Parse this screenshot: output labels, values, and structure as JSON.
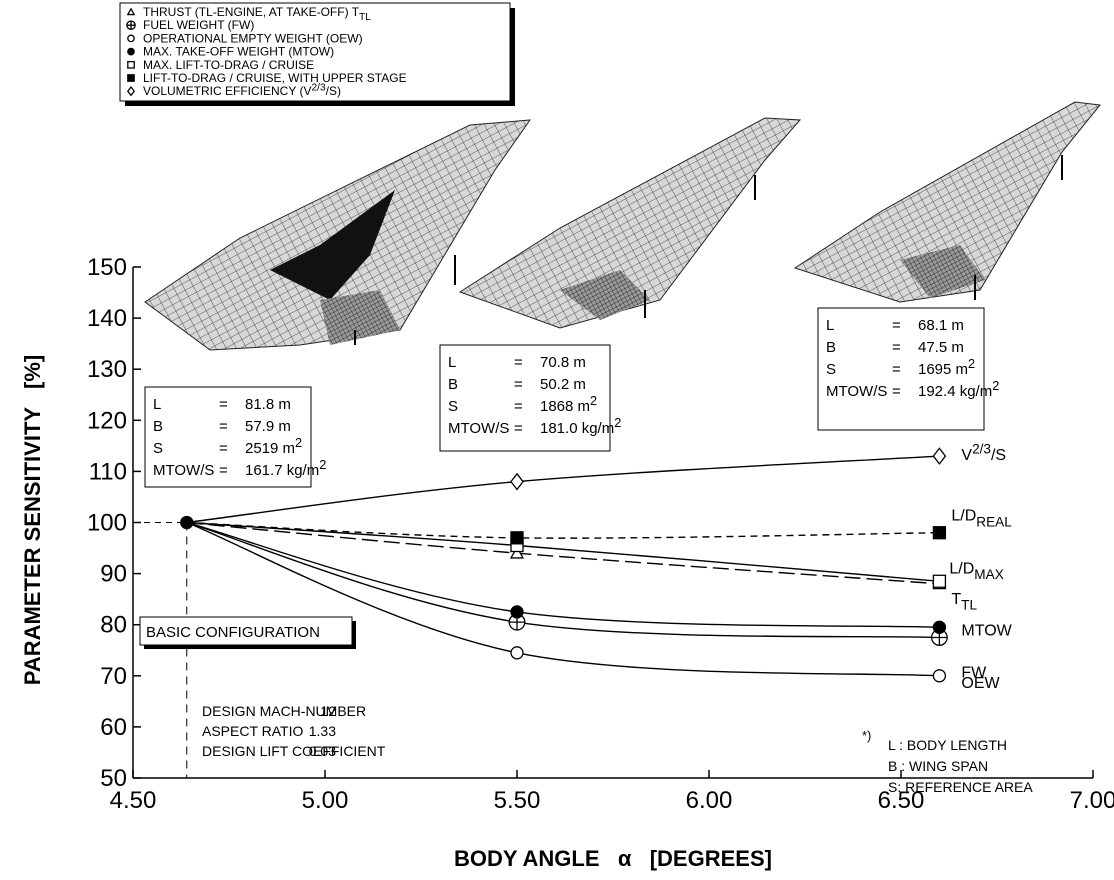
{
  "chart_data": {
    "type": "line",
    "x_label": "BODY ANGLE   α   [DEGREES]",
    "y_label": "PARAMETER SENSITIVITY   [%]",
    "x": [
      4.64,
      5.5,
      6.6
    ],
    "xlim": [
      4.5,
      7.0
    ],
    "xticks": [
      {
        "value": 4.5,
        "label": "4.50"
      },
      {
        "value": 5.0,
        "label": "5.00"
      },
      {
        "value": 5.5,
        "label": "5.50"
      },
      {
        "value": 6.0,
        "label": "6.00"
      },
      {
        "value": 6.5,
        "label": "6.50"
      },
      {
        "value": 7.0,
        "label": "7.00"
      }
    ],
    "ylim": [
      50,
      150
    ],
    "yticks": [
      50,
      60,
      70,
      80,
      90,
      100,
      110,
      120,
      130,
      140,
      150
    ],
    "series": [
      {
        "name": [
          "THRUST (TL-ENGINE, AT TAKE-OFF) T",
          {
            "sub": "TL"
          }
        ],
        "end_label": [
          "T",
          {
            "sub": "TL"
          }
        ],
        "marker": "triangle",
        "dash": "long-dash",
        "color": "#000000",
        "values": [
          100,
          94,
          88
        ]
      },
      {
        "name": [
          "FUEL WEIGHT (FW)"
        ],
        "end_label": [
          "FW"
        ],
        "marker": "circle-plus",
        "dash": "solid",
        "color": "#000000",
        "values": [
          100,
          80.5,
          77.5
        ]
      },
      {
        "name": [
          "OPERATIONAL EMPTY WEIGHT (OEW)"
        ],
        "end_label": [
          "OEW"
        ],
        "marker": "circle",
        "dash": "solid",
        "color": "#000000",
        "values": [
          100,
          74.5,
          70
        ]
      },
      {
        "name": [
          "MAX. TAKE-OFF WEIGHT (MTOW)"
        ],
        "end_label": [
          "MTOW"
        ],
        "marker": "filled-circle",
        "dash": "solid",
        "color": "#000000",
        "values": [
          100,
          82.5,
          79.5
        ]
      },
      {
        "name": [
          "MAX. LIFT-TO-DRAG / CRUISE"
        ],
        "end_label": [
          "L/D",
          {
            "sub": "MAX"
          }
        ],
        "marker": "square",
        "dash": "solid",
        "color": "#000000",
        "values": [
          100,
          95.5,
          88.5
        ]
      },
      {
        "name": [
          "LIFT-TO-DRAG / CRUISE, WITH UPPER STAGE"
        ],
        "end_label": [
          "L/D",
          {
            "sub": "REAL"
          }
        ],
        "marker": "filled-square",
        "dash": "dash",
        "color": "#000000",
        "values": [
          100,
          97,
          98
        ]
      },
      {
        "name": [
          "VOLUMETRIC EFFICIENCY (V",
          {
            "sup": "2/3"
          },
          "/S)"
        ],
        "end_label": [
          "V",
          {
            "sup": "2/3"
          },
          "/S"
        ],
        "marker": "diamond",
        "dash": "solid",
        "color": "#000000",
        "values": [
          100,
          108,
          113
        ]
      }
    ],
    "config_boxes": [
      {
        "rows": [
          [
            "L",
            "=",
            [
              "81.8 m"
            ]
          ],
          [
            "B",
            "=",
            [
              "57.9 m"
            ]
          ],
          [
            "S",
            "=",
            [
              "2519 m",
              {
                "sup": "2"
              }
            ]
          ],
          [
            "MTOW/S",
            "=",
            [
              "161.7 kg/m",
              {
                "sup": "2"
              }
            ]
          ]
        ]
      },
      {
        "rows": [
          [
            "L",
            "=",
            [
              "70.8 m"
            ]
          ],
          [
            "B",
            "=",
            [
              "50.2 m"
            ]
          ],
          [
            "S",
            "=",
            [
              "1868 m",
              {
                "sup": "2"
              }
            ]
          ],
          [
            "MTOW/S",
            "=",
            [
              "181.0 kg/m",
              {
                "sup": "2"
              }
            ]
          ]
        ]
      },
      {
        "rows": [
          [
            "L",
            "=",
            [
              "68.1 m"
            ]
          ],
          [
            "B",
            "=",
            [
              "47.5 m"
            ]
          ],
          [
            "S",
            "=",
            [
              "1695 m",
              {
                "sup": "2"
              }
            ]
          ],
          [
            "MTOW/S",
            "=",
            [
              "192.4 kg/m",
              {
                "sup": "2"
              }
            ]
          ]
        ]
      }
    ],
    "basic_label": "BASIC CONFIGURATION",
    "design_parameters": [
      [
        "DESIGN MACH-NUMBER",
        "12"
      ],
      [
        "ASPECT RATIO",
        "1.33"
      ],
      [
        "DESIGN LIFT COEFFICIENT",
        "0.03"
      ]
    ],
    "footnote": {
      "marker": "*)",
      "lines": [
        "L : BODY LENGTH",
        "B : WING SPAN",
        "S: REFERENCE AREA"
      ]
    }
  }
}
